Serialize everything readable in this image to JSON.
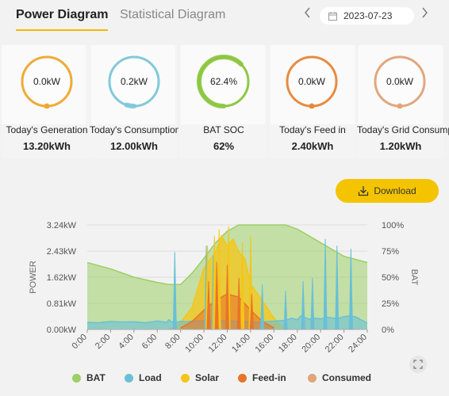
{
  "header": {
    "tabs": [
      {
        "label": "Power Diagram",
        "active": true
      },
      {
        "label": "Statistical Diagram",
        "active": false
      }
    ],
    "date": "2023-07-23",
    "prev_icon": "chevron-left-icon",
    "next_icon": "chevron-right-icon"
  },
  "cards": [
    {
      "gauge_text": "0.0kW",
      "label": "Today's Generation",
      "value": "13.20kWh",
      "color": "#f0a830",
      "level": 0
    },
    {
      "gauge_text": "0.2kW",
      "label": "Today's Consumption",
      "value": "12.00kWh",
      "color": "#7cc9d9",
      "level": 0.05
    },
    {
      "gauge_text": "62.4%",
      "label": "BAT SOC",
      "value": "62%",
      "color": "#8cc63e",
      "level": 0.624
    },
    {
      "gauge_text": "0.0kW",
      "label": "Today's Feed in",
      "value": "2.40kWh",
      "color": "#e8883a",
      "level": 0
    },
    {
      "gauge_text": "0.0kW",
      "label": "Today's Grid Consumption",
      "value": "1.20kWh",
      "color": "#e0a57a",
      "level": 0
    }
  ],
  "download": {
    "label": "Download",
    "icon": "download-icon"
  },
  "chart_data": {
    "type": "area",
    "ylabel_left": "POWER",
    "ylabel_right": "BAT",
    "y_left_ticks": [
      "0.00kW",
      "0.81kW",
      "1.62kW",
      "2.43kW",
      "3.24kW"
    ],
    "y_right_ticks": [
      "0%",
      "25%",
      "50%",
      "75%",
      "100%"
    ],
    "x_ticks": [
      "0:00",
      "2:00",
      "4:00",
      "6:00",
      "8:00",
      "10:00",
      "12:00",
      "14:00",
      "16:00",
      "18:00",
      "20:00",
      "22:00",
      "24:00"
    ],
    "ylim_left": [
      0,
      3.24
    ],
    "ylim_right": [
      0,
      100
    ],
    "series": [
      {
        "name": "BAT",
        "color": "#9ccf66",
        "axis": "right",
        "x": [
          0,
          2,
          4,
          6,
          7,
          8,
          9,
          10,
          11,
          12,
          13,
          14,
          15,
          16,
          17,
          18,
          20,
          22,
          24
        ],
        "y": [
          64,
          58,
          50,
          45,
          43,
          43,
          54,
          68,
          83,
          94,
          100,
          100,
          100,
          100,
          100,
          96,
          83,
          70,
          64
        ]
      },
      {
        "name": "Load",
        "color": "#69c0d6",
        "axis": "left",
        "x": [
          0,
          1,
          2,
          3,
          4,
          5,
          6,
          6.8,
          7,
          7.2,
          7.6,
          8,
          8.5,
          9,
          10,
          10.3,
          10.5,
          11,
          12,
          13,
          14,
          15,
          16,
          17,
          17.5,
          18,
          18.3,
          18.6,
          19,
          19.5,
          20,
          20.5,
          21,
          21.5,
          22,
          22.5,
          23,
          24
        ],
        "y": [
          0.22,
          0.21,
          0.25,
          0.23,
          0.24,
          0.21,
          0.26,
          0.22,
          0.3,
          0.24,
          0.22,
          0.25,
          0.24,
          0.26,
          0.27,
          0.25,
          0.26,
          0.29,
          0.27,
          0.25,
          0.24,
          0.23,
          0.26,
          0.28,
          0.35,
          0.3,
          0.42,
          0.38,
          0.32,
          0.35,
          0.33,
          0.38,
          0.36,
          0.34,
          0.4,
          0.42,
          0.39,
          0.2
        ]
      },
      {
        "name": "Solar",
        "color": "#f5c518",
        "axis": "left",
        "x": [
          7,
          8,
          9,
          10,
          11,
          11.5,
          12,
          12.5,
          13,
          13.5,
          14,
          15,
          16,
          17
        ],
        "y": [
          0,
          0.2,
          0.7,
          1.9,
          2.4,
          2.9,
          2.6,
          2.8,
          2.4,
          2.2,
          1.4,
          0.9,
          0.35,
          0
        ]
      },
      {
        "name": "Feed-in",
        "color": "#e8742a",
        "axis": "left",
        "x": [
          8,
          9,
          10,
          11,
          12,
          13,
          14,
          15,
          16
        ],
        "y": [
          0.05,
          0.25,
          0.6,
          0.9,
          1.1,
          1.0,
          0.6,
          0.25,
          0.05
        ]
      },
      {
        "name": "Consumed",
        "color": "#e0a57a",
        "axis": "left",
        "x": [
          0,
          24
        ],
        "y": [
          0,
          0
        ]
      }
    ],
    "spikes": [
      {
        "series": "Load",
        "x": 7.5,
        "y": 2.4
      },
      {
        "series": "Load",
        "x": 10.2,
        "y": 2.6
      },
      {
        "series": "Load",
        "x": 10.8,
        "y": 2.3
      },
      {
        "series": "Load",
        "x": 14.0,
        "y": 2.5
      },
      {
        "series": "Load",
        "x": 15.0,
        "y": 1.4
      },
      {
        "series": "Load",
        "x": 17.0,
        "y": 1.2
      },
      {
        "series": "Load",
        "x": 18.5,
        "y": 1.5
      },
      {
        "series": "Load",
        "x": 19.3,
        "y": 1.6
      },
      {
        "series": "Load",
        "x": 20.4,
        "y": 2.8
      },
      {
        "series": "Load",
        "x": 21.4,
        "y": 2.6
      },
      {
        "series": "Load",
        "x": 22.6,
        "y": 2.5
      },
      {
        "series": "Solar",
        "x": 10.3,
        "y": 2.6
      },
      {
        "series": "Solar",
        "x": 10.9,
        "y": 2.9
      },
      {
        "series": "Solar",
        "x": 11.3,
        "y": 3.1
      },
      {
        "series": "Solar",
        "x": 12.1,
        "y": 3.2
      },
      {
        "series": "Solar",
        "x": 13.3,
        "y": 2.7
      },
      {
        "series": "Solar",
        "x": 14.0,
        "y": 2.9
      },
      {
        "series": "Feed-in",
        "x": 10.4,
        "y": 1.5
      },
      {
        "series": "Feed-in",
        "x": 11.1,
        "y": 2.1
      },
      {
        "series": "Feed-in",
        "x": 12.0,
        "y": 2.0
      },
      {
        "series": "Feed-in",
        "x": 13.0,
        "y": 1.6
      },
      {
        "series": "Feed-in",
        "x": 14.1,
        "y": 1.1
      }
    ],
    "grid": true,
    "legend_position": "bottom"
  },
  "legend": [
    {
      "label": "BAT",
      "color": "#9ccf66"
    },
    {
      "label": "Load",
      "color": "#69c0d6"
    },
    {
      "label": "Solar",
      "color": "#f5c518"
    },
    {
      "label": "Feed-in",
      "color": "#e8742a"
    },
    {
      "label": "Consumed",
      "color": "#e0a57a"
    }
  ],
  "expand_icon": "expand-icon"
}
